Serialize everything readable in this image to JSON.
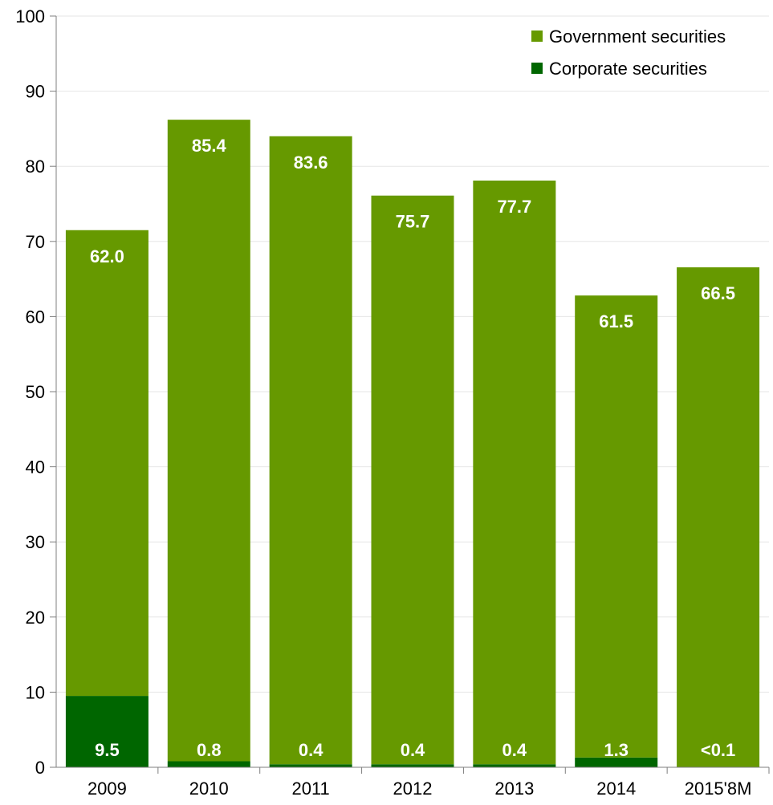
{
  "chart_data": {
    "type": "bar",
    "stacked": true,
    "categories": [
      "2009",
      "2010",
      "2011",
      "2012",
      "2013",
      "2014",
      "2015'8M"
    ],
    "series": [
      {
        "name": "Corporate securities",
        "values": [
          9.5,
          0.8,
          0.4,
          0.4,
          0.4,
          1.3,
          0.05
        ],
        "labels": [
          "9.5",
          "0.8",
          "0.4",
          "0.4",
          "0.4",
          "1.3",
          "<0.1"
        ],
        "color": "#006600"
      },
      {
        "name": "Government securities",
        "values": [
          62.0,
          85.4,
          83.6,
          75.7,
          77.7,
          61.5,
          66.5
        ],
        "labels": [
          "62.0",
          "85.4",
          "83.6",
          "75.7",
          "77.7",
          "61.5",
          "66.5"
        ],
        "color": "#669900"
      }
    ],
    "legend_order": [
      "Government securities",
      "Corporate securities"
    ],
    "ylim": [
      0,
      100
    ],
    "yticks": [
      0,
      10,
      20,
      30,
      40,
      50,
      60,
      70,
      80,
      90,
      100
    ],
    "grid": true,
    "legend_position": "top-right",
    "title": "",
    "xlabel": "",
    "ylabel": ""
  }
}
